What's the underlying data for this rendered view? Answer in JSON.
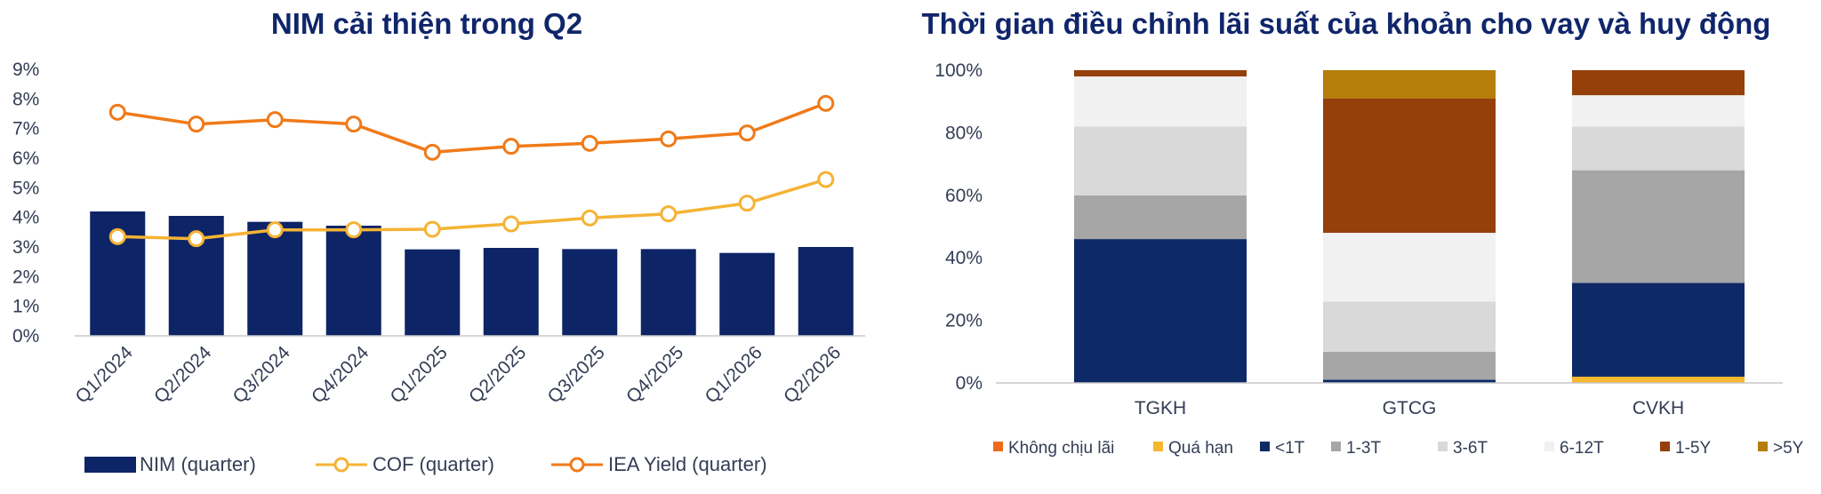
{
  "chart_data": [
    {
      "type": "bar",
      "title": "NIM cải thiện trong Q2",
      "xlabel": "",
      "ylabel": "",
      "categories": [
        "Q1/2024",
        "Q2/2024",
        "Q3/2024",
        "Q4/2024",
        "Q1/2025",
        "Q2/2025",
        "Q3/2025",
        "Q4/2025",
        "Q1/2026",
        "Q2/2026"
      ],
      "ylim": [
        0,
        9
      ],
      "y_ticks": [
        "0%",
        "1%",
        "2%",
        "3%",
        "4%",
        "5%",
        "6%",
        "7%",
        "8%",
        "9%"
      ],
      "grid": false,
      "legend_position": "bottom",
      "series": [
        {
          "name": "NIM (quarter)",
          "kind": "bar",
          "color": "#0d2466",
          "values": [
            4.2,
            4.05,
            3.85,
            3.72,
            2.92,
            2.97,
            2.93,
            2.93,
            2.8,
            3.0
          ]
        },
        {
          "name": "COF (quarter)",
          "kind": "line",
          "color": "#f5b335",
          "values": [
            3.35,
            3.28,
            3.58,
            3.58,
            3.6,
            3.78,
            3.98,
            4.12,
            4.48,
            5.28
          ]
        },
        {
          "name": "IEA Yield (quarter)",
          "kind": "line",
          "color": "#f07a19",
          "values": [
            7.55,
            7.15,
            7.3,
            7.15,
            6.2,
            6.4,
            6.5,
            6.65,
            6.85,
            7.85
          ]
        }
      ]
    },
    {
      "type": "bar",
      "stacked": true,
      "title": "Thời gian điều chỉnh lãi suất của khoản cho vay và huy động",
      "xlabel": "",
      "ylabel": "",
      "categories": [
        "TGKH",
        "GTCG",
        "CVKH"
      ],
      "ylim": [
        0,
        100
      ],
      "y_ticks": [
        "0%",
        "20%",
        "40%",
        "60%",
        "80%",
        "100%"
      ],
      "grid": false,
      "legend_position": "bottom",
      "series": [
        {
          "name": "Không chịu lãi",
          "color": "#ee6a1a",
          "values": [
            0,
            0,
            0
          ]
        },
        {
          "name": "Quá hạn",
          "color": "#f5b82e",
          "values": [
            0,
            0,
            2
          ]
        },
        {
          "name": "<1T",
          "color": "#0d2a66",
          "values": [
            46,
            1,
            30
          ]
        },
        {
          "name": "1-3T",
          "color": "#a6a6a6",
          "values": [
            14,
            9,
            36
          ]
        },
        {
          "name": "3-6T",
          "color": "#d9d9d9",
          "values": [
            22,
            16,
            14
          ]
        },
        {
          "name": "6-12T",
          "color": "#f1f1f1",
          "values": [
            16,
            22,
            10
          ]
        },
        {
          "name": "1-5Y",
          "color": "#953f0b",
          "values": [
            2,
            43,
            8
          ]
        },
        {
          "name": ">5Y",
          "color": "#b57d09",
          "values": [
            0,
            9,
            0
          ]
        }
      ]
    }
  ]
}
